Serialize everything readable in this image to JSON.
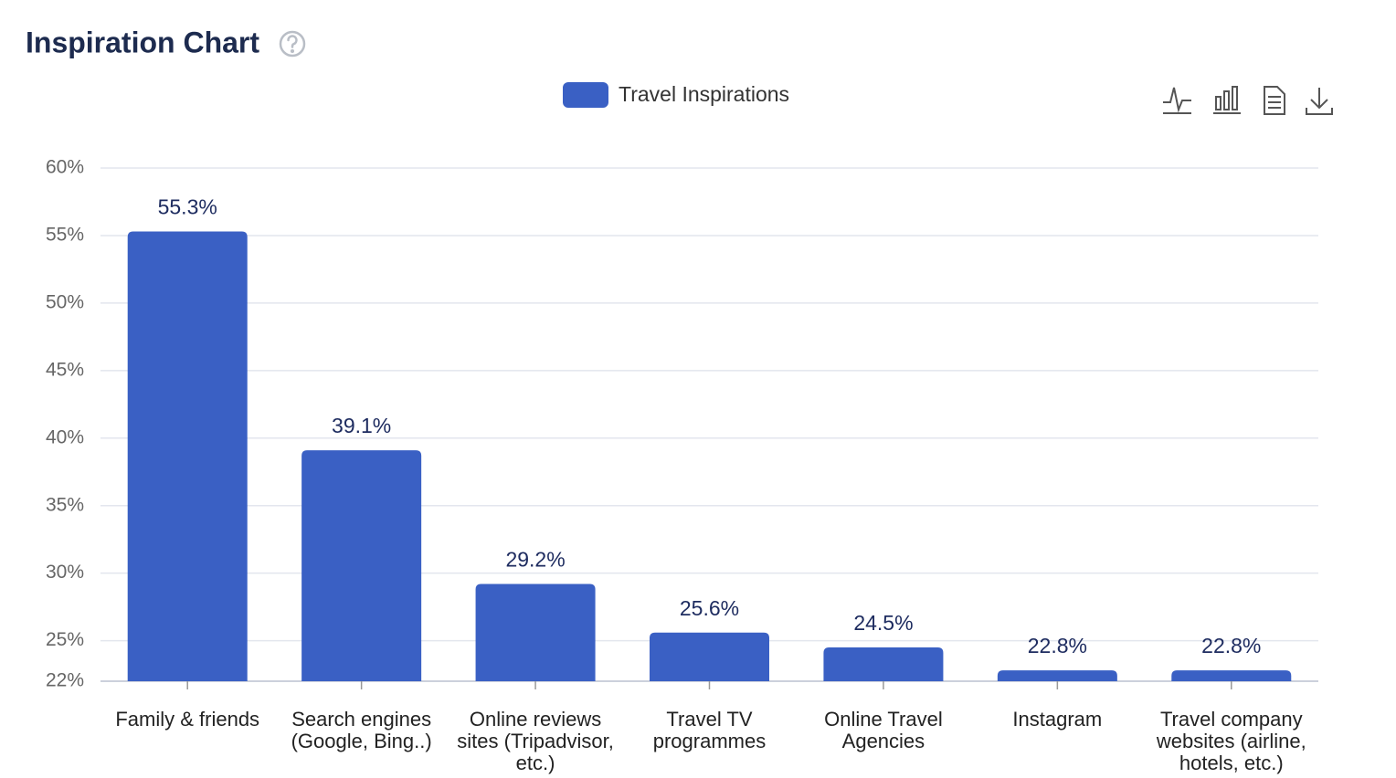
{
  "chart_data": {
    "type": "bar",
    "title": "Inspiration Chart",
    "categories": [
      "Family & friends",
      "Search engines (Google, Bing..)",
      "Online reviews sites (Tripadvisor, etc.)",
      "Travel TV programmes",
      "Online Travel Agencies",
      "Instagram",
      "Travel company websites (airline, hotels, etc.)"
    ],
    "series": [
      {
        "name": "Travel Inspirations",
        "color": "#3a60c4",
        "values": [
          55.3,
          39.1,
          29.2,
          25.6,
          24.5,
          22.8,
          22.8
        ],
        "value_labels": [
          "55.3%",
          "39.1%",
          "29.2%",
          "25.6%",
          "24.5%",
          "22.8%",
          "22.8%"
        ]
      }
    ],
    "ylim": [
      22,
      60
    ],
    "yticks": [
      {
        "value": 22,
        "label": "22%"
      },
      {
        "value": 25,
        "label": "25%"
      },
      {
        "value": 30,
        "label": "30%"
      },
      {
        "value": 35,
        "label": "35%"
      },
      {
        "value": 40,
        "label": "40%"
      },
      {
        "value": 45,
        "label": "45%"
      },
      {
        "value": 50,
        "label": "50%"
      },
      {
        "value": 55,
        "label": "55%"
      },
      {
        "value": 60,
        "label": "60%"
      }
    ],
    "grid": true
  }
}
